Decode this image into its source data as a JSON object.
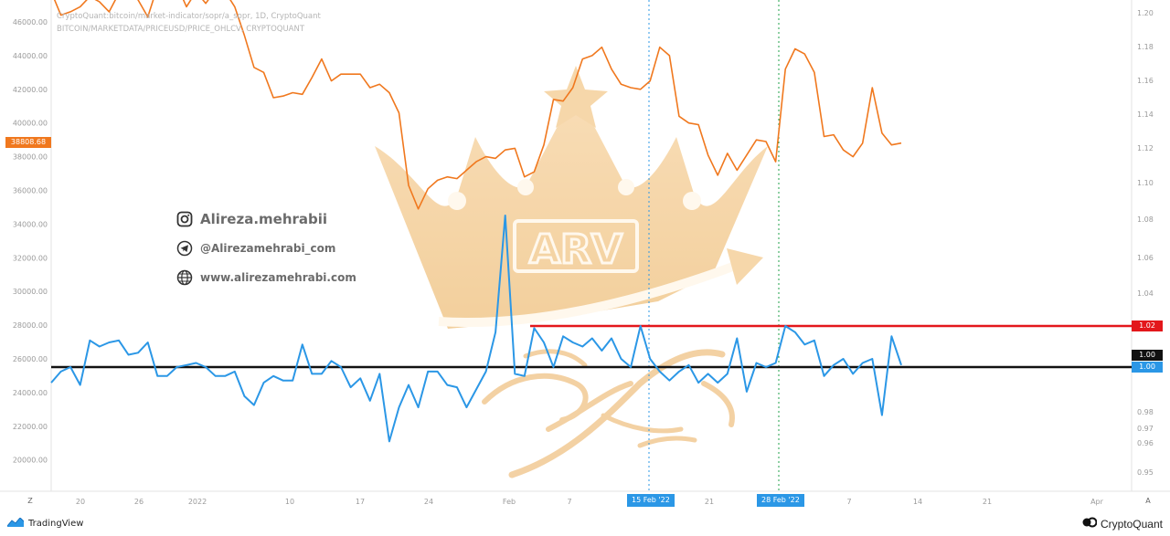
{
  "header": {
    "line1": "CryptoQuant:bitcoin/market-indicator/sopr/a_sopr, 1D, CryptoQuant",
    "line2": "BITCOIN/MARKETDATA/PRICEUSD/PRICE_OHLCV, CRYPTOQUANT"
  },
  "social": {
    "instagram": "Alireza.mehrabii",
    "telegram": "@Alirezamehrabi_com",
    "website": "www.alirezamehrabi.com"
  },
  "watermark": {
    "logo_text": "ARV"
  },
  "badges": {
    "price": "38808.68",
    "red_level": "1.02",
    "black_level": "1.00",
    "blue_level": "1.00",
    "date1": "15 Feb '22",
    "date2": "28 Feb '22"
  },
  "axis_buttons": {
    "left": "Z",
    "right": "A"
  },
  "footer": {
    "tradingview": "TradingView",
    "cryptoquant": "CryptoQuant"
  },
  "chart_data": {
    "type": "line",
    "left_axis": {
      "ticks": [
        "46000.00",
        "44000.00",
        "42000.00",
        "40000.00",
        "38000.00",
        "36000.00",
        "34000.00",
        "32000.00",
        "30000.00",
        "28000.00",
        "26000.00",
        "24000.00",
        "22000.00",
        "20000.00"
      ],
      "range": [
        18500,
        47000
      ]
    },
    "right_axis": {
      "ticks": [
        "1.20",
        "1.18",
        "1.16",
        "1.14",
        "1.12",
        "1.10",
        "1.08",
        "1.06",
        "1.04",
        "1.02",
        "1.00",
        "0.98",
        "0.97",
        "0.96",
        "0.95"
      ],
      "scale": "log-like (compressed below 1.00)"
    },
    "x_axis": {
      "ticks": [
        "20",
        "26",
        "2022",
        "10",
        "17",
        "24",
        "Feb",
        "7",
        "14",
        "21",
        "28",
        "7",
        "14",
        "21",
        "Apr"
      ]
    },
    "series": [
      {
        "name": "BITCOIN/MARKETDATA/PRICEUSD/PRICE_OHLCV",
        "color": "#f0781e",
        "values": [
          47800,
          46400,
          46600,
          46900,
          47500,
          47200,
          46600,
          47700,
          48000,
          47300,
          46300,
          48100,
          47800,
          48200,
          46900,
          47800,
          47100,
          47900,
          47800,
          46900,
          45200,
          43300,
          43000,
          41500,
          41600,
          41800,
          41700,
          42700,
          43800,
          42500,
          42900,
          42900,
          42900,
          42100,
          42300,
          41800,
          40600,
          36300,
          34900,
          36100,
          36600,
          36800,
          36700,
          37200,
          37700,
          38000,
          37900,
          38400,
          38500,
          36800,
          37100,
          38700,
          41400,
          41300,
          42100,
          43800,
          44000,
          44500,
          43200,
          42300,
          42100,
          42000,
          42500,
          44500,
          44000,
          40400,
          40000,
          39900,
          38100,
          36900,
          38200,
          37200,
          38100,
          39000,
          38900,
          37700,
          43200,
          44400,
          44100,
          43000,
          39200,
          39300,
          38400,
          38000,
          38800,
          42100,
          39400,
          38700,
          38808.68
        ]
      },
      {
        "name": "a_sopr",
        "color": "#2b97e6",
        "values": [
          0.993,
          0.998,
          1.0,
          0.992,
          1.013,
          1.01,
          1.012,
          1.013,
          1.006,
          1.007,
          1.012,
          0.996,
          0.996,
          1.0,
          1.001,
          1.002,
          1.0,
          0.996,
          0.996,
          0.998,
          0.987,
          0.983,
          0.993,
          0.996,
          0.994,
          0.994,
          1.011,
          0.997,
          0.997,
          1.003,
          1.0,
          0.991,
          0.995,
          0.985,
          0.997,
          0.961,
          0.982,
          0.992,
          0.982,
          0.998,
          0.998,
          0.992,
          0.991,
          0.982,
          0.99,
          0.998,
          1.017,
          1.082,
          0.997,
          0.996,
          1.019,
          1.012,
          1.0,
          1.015,
          1.012,
          1.01,
          1.014,
          1.008,
          1.014,
          1.004,
          1.0,
          1.02,
          1.004,
          0.998,
          0.994,
          0.998,
          1.001,
          0.993,
          0.997,
          0.993,
          0.997,
          1.014,
          0.989,
          1.002,
          1.0,
          1.002,
          1.02,
          1.017,
          1.011,
          1.013,
          0.996,
          1.001,
          1.004,
          0.997,
          1.002,
          1.004,
          0.978,
          1.015,
          1.001
        ]
      }
    ],
    "horizontal_lines": [
      {
        "label": "red",
        "value": 1.02,
        "color": "#e3171b"
      },
      {
        "label": "black",
        "value": 1.0,
        "color": "#111111"
      }
    ],
    "vertical_markers": [
      {
        "label": "15 Feb '22",
        "color": "#2b97e6"
      },
      {
        "label": "28 Feb '22",
        "color": "#1fa14a"
      }
    ]
  }
}
